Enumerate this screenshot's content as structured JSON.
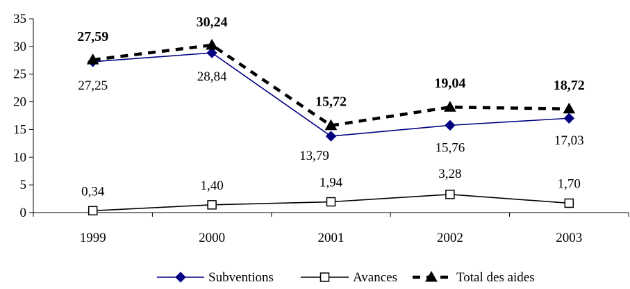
{
  "chart_data": {
    "type": "line",
    "title": "",
    "xlabel": "",
    "ylabel": "",
    "categories": [
      "1999",
      "2000",
      "2001",
      "2002",
      "2003"
    ],
    "ylim": [
      0,
      35
    ],
    "yticks": [
      0,
      5,
      10,
      15,
      20,
      25,
      30,
      35
    ],
    "yticks_labels": [
      "0",
      "5",
      "10",
      "15",
      "20",
      "25",
      "30",
      "35"
    ],
    "grid": false,
    "legend_position": "bottom",
    "series": [
      {
        "name": "Subventions",
        "values": [
          27.25,
          28.84,
          13.79,
          15.76,
          17.03
        ],
        "labels": [
          "27,25",
          "28,84",
          "13,79",
          "15,76",
          "17,03"
        ],
        "color": "#000080",
        "marker": "diamond",
        "line_style": "solid",
        "label_bold": false
      },
      {
        "name": "Avances",
        "values": [
          0.34,
          1.4,
          1.94,
          3.28,
          1.7
        ],
        "labels": [
          "0,34",
          "1,40",
          "1,94",
          "3,28",
          "1,70"
        ],
        "color": "#000000",
        "marker": "square-open",
        "line_style": "solid",
        "label_bold": false
      },
      {
        "name": "Total des aides",
        "values": [
          27.59,
          30.24,
          15.72,
          19.04,
          18.72
        ],
        "labels": [
          "27,59",
          "30,24",
          "15,72",
          "19,04",
          "18,72"
        ],
        "color": "#000000",
        "marker": "triangle",
        "line_style": "dashed",
        "label_bold": true
      }
    ]
  }
}
